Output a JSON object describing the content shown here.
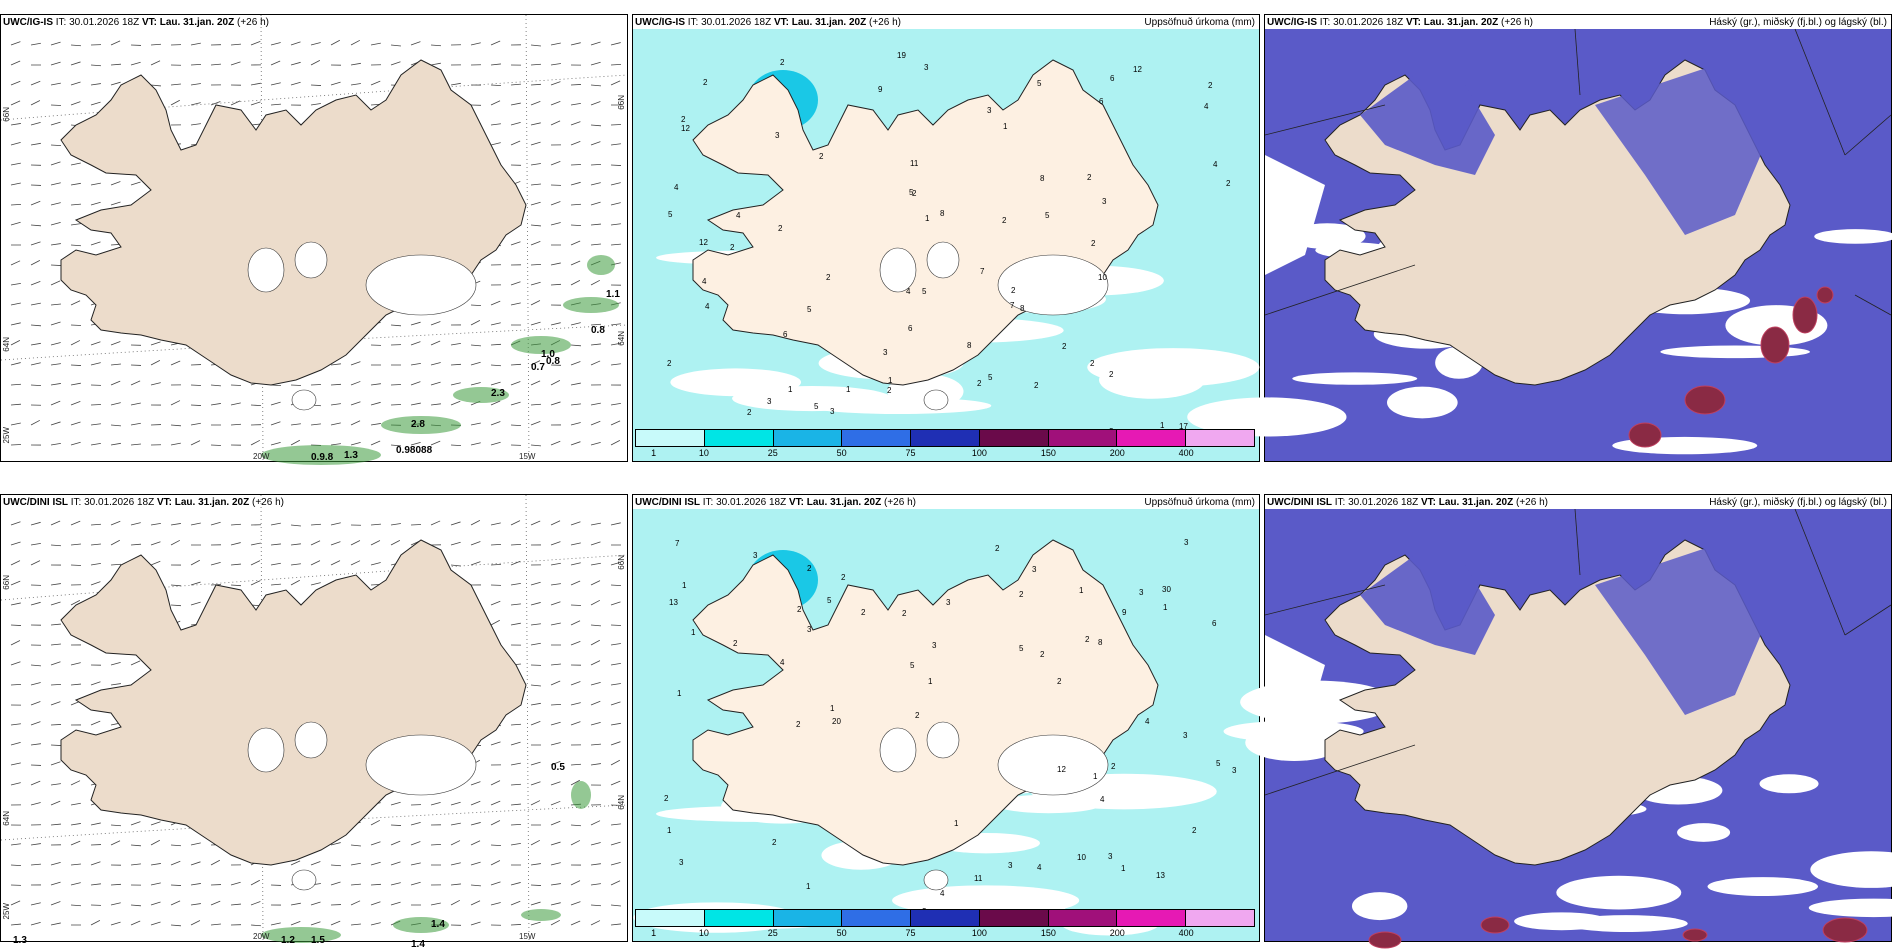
{
  "panels": {
    "wind_igis": {
      "model": "UWC/IG-IS",
      "it_text": "IT: 30.01.2026 18Z",
      "vt_text": "VT: Lau. 31.jan. 20Z",
      "lead_text": "(+26 h)",
      "right_title": "",
      "contour_values": [
        "1.1",
        "0.8",
        "1.0",
        "0.7",
        "0.8",
        "2.3",
        "2.8",
        "1.3",
        "0.9.8",
        "0.98088"
      ],
      "lon_ticks": [
        "20W",
        "15W"
      ],
      "lat_ticks": [
        "66N",
        "64N",
        "25W",
        "66N",
        "64N"
      ]
    },
    "precip_igis": {
      "model": "UWC/IG-IS",
      "it_text": "IT: 30.01.2026 18Z",
      "vt_text": "VT: Lau. 31.jan. 20Z",
      "lead_text": "(+26 h)",
      "right_title": "Uppsöfnuð úrkoma (mm)",
      "values": [
        "5",
        "3",
        "2",
        "2",
        "2",
        "1",
        "2",
        "1",
        "11",
        "12",
        "8",
        "10",
        "19",
        "12",
        "3",
        "6",
        "5",
        "12",
        "7",
        "6",
        "2",
        "2",
        "4",
        "2",
        "1",
        "1",
        "2",
        "2",
        "3",
        "2",
        "4",
        "2",
        "2",
        "2",
        "5",
        "4",
        "3",
        "2",
        "1",
        "2",
        "8",
        "5",
        "5",
        "2",
        "5",
        "5",
        "6",
        "2",
        "1",
        "2",
        "8",
        "2",
        "8",
        "2",
        "2",
        "9",
        "7",
        "5",
        "6",
        "3",
        "4",
        "3",
        "4",
        "9",
        "17",
        "4",
        "3",
        "2",
        "2",
        "4",
        "5"
      ]
    },
    "cloud_igis": {
      "model": "UWC/IG-IS",
      "it_text": "IT: 30.01.2026 18Z",
      "vt_text": "VT: Lau. 31.jan. 20Z",
      "lead_text": "(+26 h)",
      "right_title": "Háský (gr.), miðský (fj.bl.) og lágský (bl.)"
    },
    "wind_dini": {
      "model": "UWC/DINI ISL",
      "it_text": "IT: 30.01.2026 18Z",
      "vt_text": "VT: Lau. 31.jan. 20Z",
      "lead_text": "(+26 h)",
      "right_title": "",
      "contour_values": [
        "0.5",
        "1.4",
        "1.4",
        "1.2",
        "1.5",
        "1.3"
      ],
      "lon_ticks": [
        "20W",
        "15W"
      ],
      "lat_ticks": [
        "66N",
        "64N",
        "25W",
        "66N",
        "64N"
      ]
    },
    "precip_dini": {
      "model": "UWC/DINI ISL",
      "it_text": "IT: 30.01.2026 18Z",
      "vt_text": "VT: Lau. 31.jan. 20Z",
      "lead_text": "(+26 h)",
      "right_title": "Uppsöfnuð úrkoma (mm)",
      "values": [
        "1",
        "3",
        "2",
        "4",
        "3",
        "3",
        "12",
        "20",
        "30",
        "3",
        "5",
        "5",
        "2",
        "2",
        "1",
        "1",
        "1",
        "2",
        "13",
        "3",
        "1",
        "3",
        "1",
        "1",
        "1",
        "4",
        "1",
        "3",
        "3",
        "2",
        "2",
        "4",
        "3",
        "2",
        "1",
        "2",
        "2",
        "2",
        "2",
        "1",
        "8",
        "2",
        "5",
        "3",
        "11",
        "6",
        "13",
        "4",
        "2",
        "2",
        "3",
        "2",
        "2",
        "1",
        "3",
        "2",
        "3",
        "4",
        "10",
        "5",
        "9",
        "7"
      ]
    },
    "cloud_dini": {
      "model": "UWC/DINI ISL",
      "it_text": "IT: 30.01.2026 18Z",
      "vt_text": "VT: Lau. 31.jan. 20Z",
      "lead_text": "(+26 h)",
      "right_title": "Háský (gr.), miðský (fj.bl.) og lágský (bl.)"
    }
  },
  "colorbar": {
    "labels": [
      "1",
      "10",
      "25",
      "50",
      "75",
      "100",
      "150",
      "200",
      "400"
    ],
    "colors": [
      "#c8fafa",
      "#00e5e5",
      "#1ab4e6",
      "#2f6ee6",
      "#1f2fb4",
      "#6a0a4a",
      "#a0107a",
      "#e619b4",
      "#f0a8f0"
    ]
  },
  "map_colors": {
    "land": "#ecdccb",
    "land_precip": "#fdf0e2",
    "glacier": "#ffffff",
    "ocean": "#ffffff",
    "wind_band": "#3c9a3c",
    "precip_light": "#aef2f2",
    "cloud_mid": "#5a5ac8",
    "cloud_low": "#3a7ae0",
    "cloud_high": "#8a2a44"
  }
}
